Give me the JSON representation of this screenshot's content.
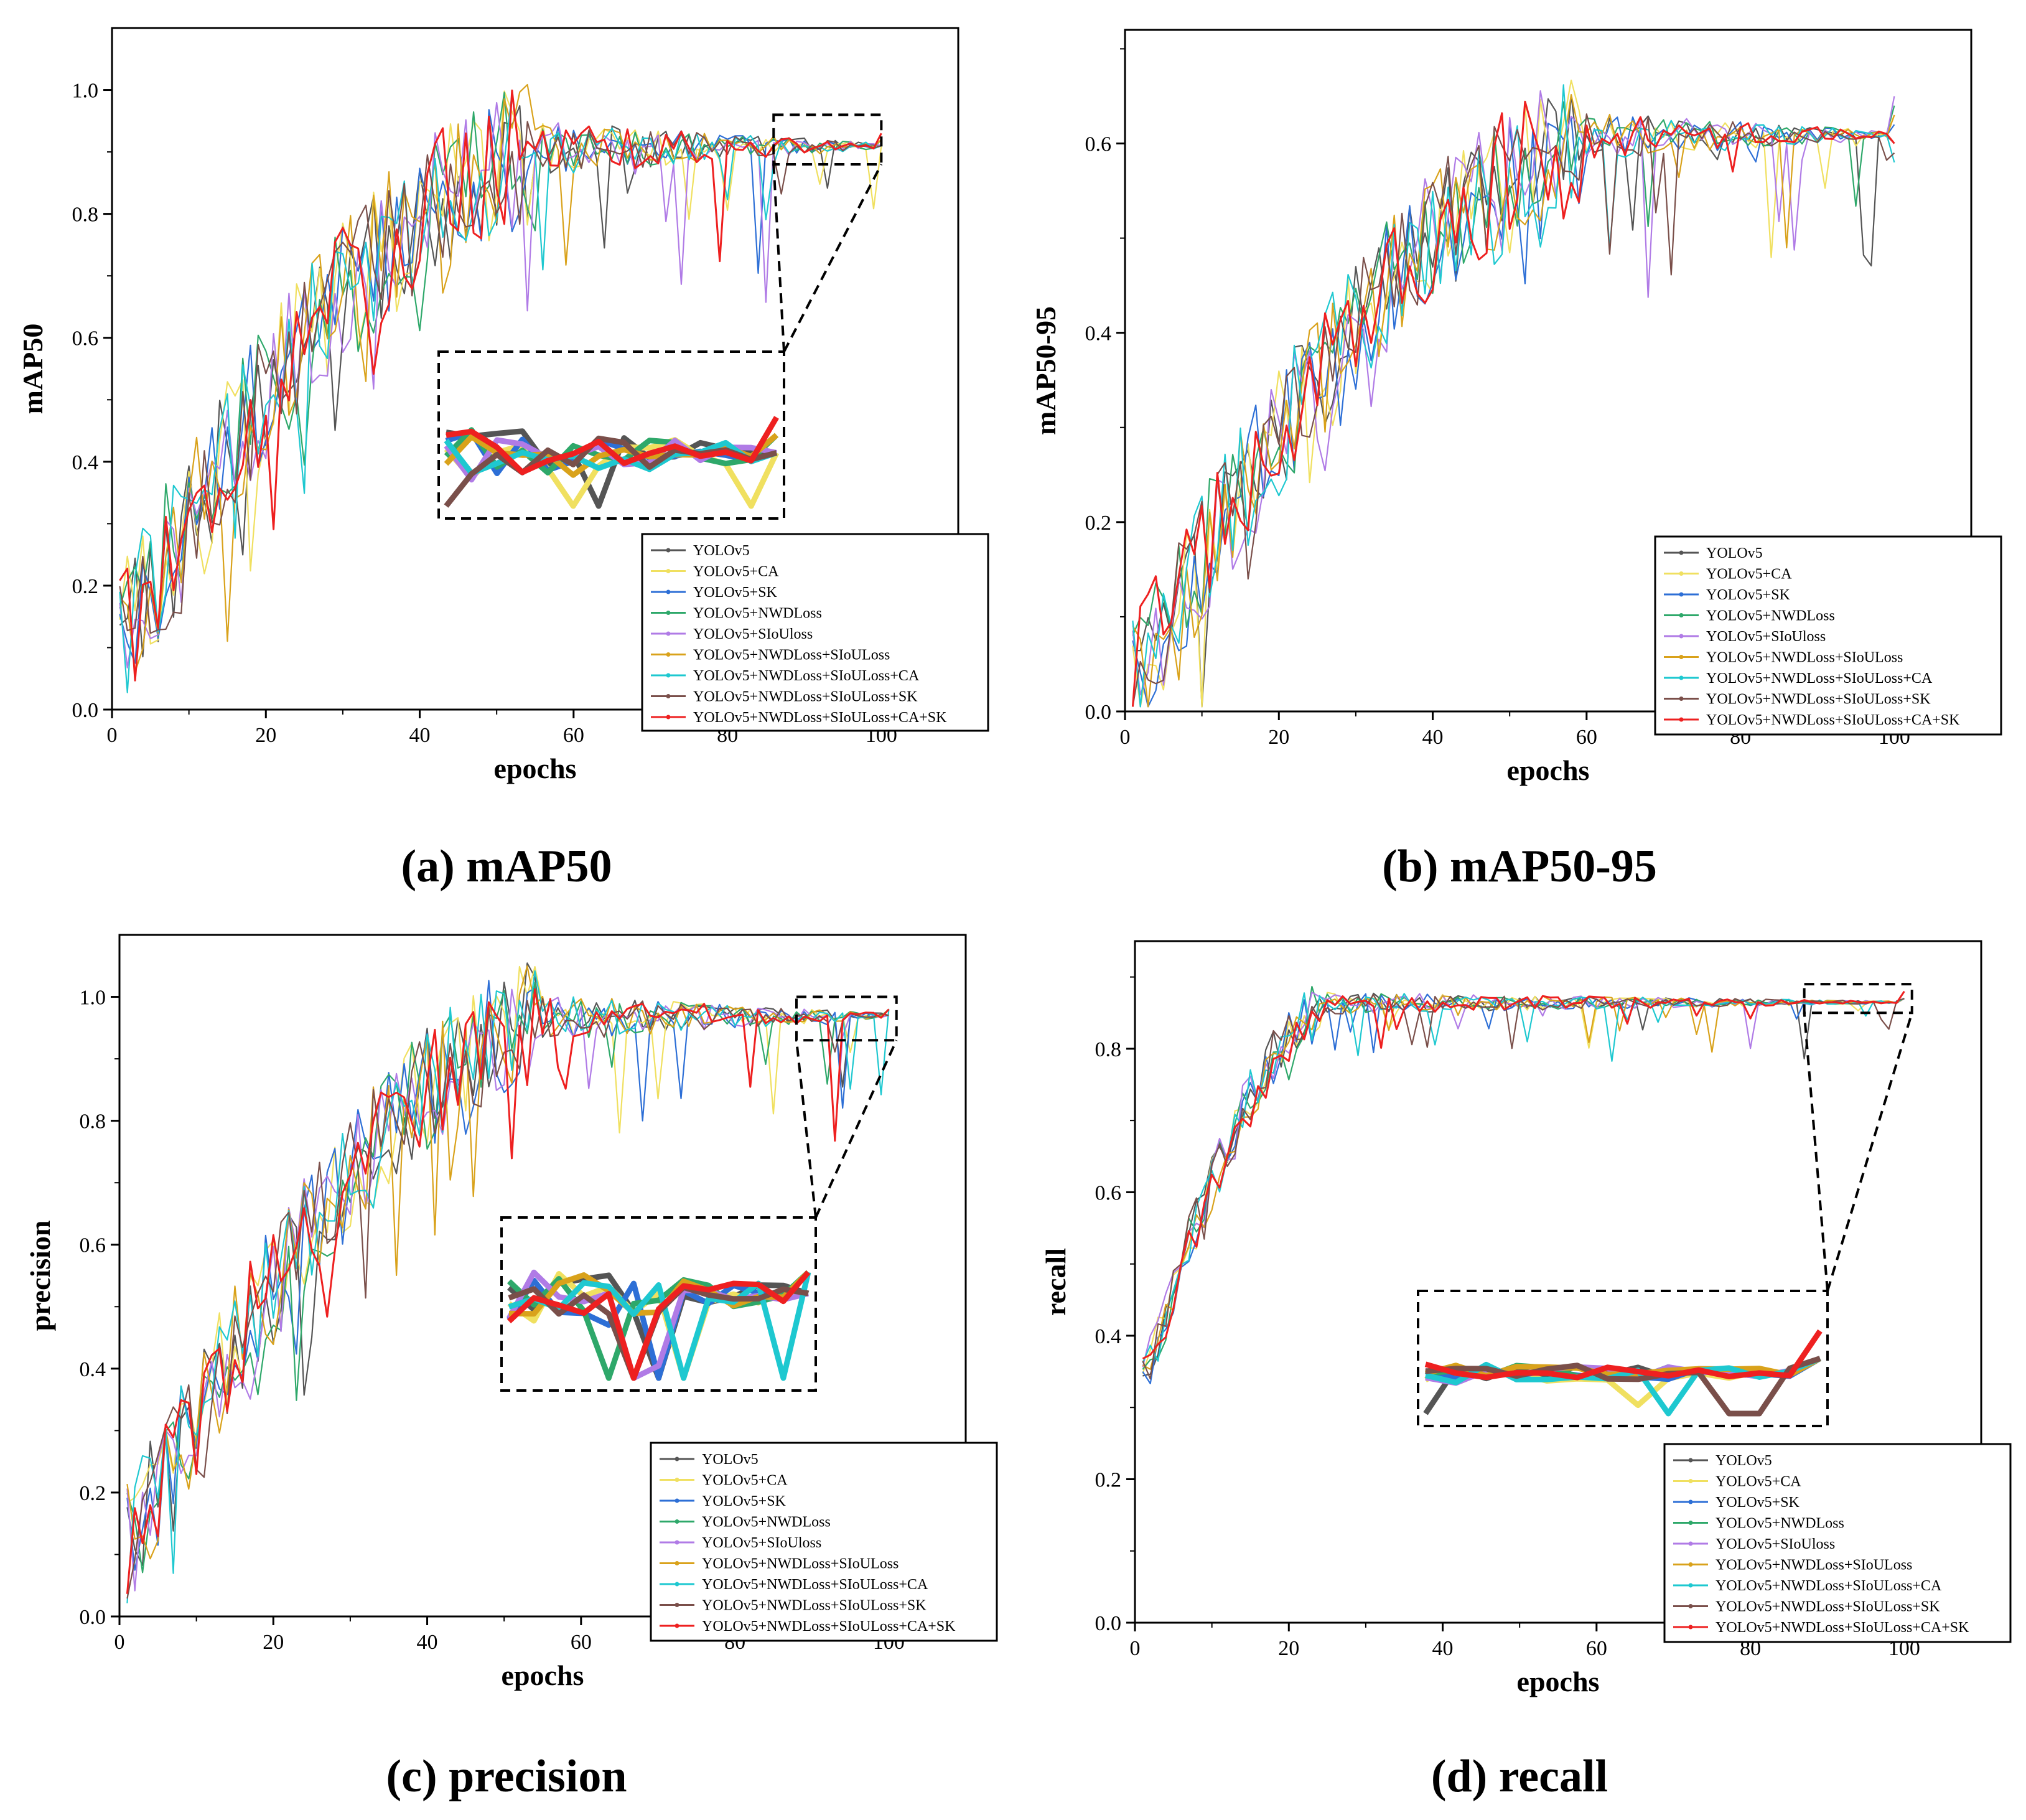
{
  "colors": {
    "YOLOv5": "#555555",
    "YOLOv5+CA": "#f0e060",
    "YOLOv5+SK": "#2d6fd6",
    "YOLOv5+NWDLoss": "#2ea86a",
    "YOLOv5+SIoUloss": "#b07be6",
    "YOLOv5+NWDLoss+SIoULoss": "#d9a21b",
    "YOLOv5+NWDLoss+SIoULoss+CA": "#1ec8d0",
    "YOLOv5+NWDLoss+SIoULoss+SK": "#7a4f4a",
    "YOLOv5+NWDLoss+SIoULoss+CA+SK": "#ee2020"
  },
  "chart_data": [
    {
      "id": "mAP50",
      "type": "line",
      "caption": "(a) mAP50",
      "xlabel": "epochs",
      "ylabel": "mAP50",
      "xlim": [
        0,
        110
      ],
      "ylim": [
        0,
        1.1
      ],
      "xticks": [
        0,
        20,
        40,
        60,
        80,
        100
      ],
      "yticks": [
        0.0,
        0.2,
        0.4,
        0.6,
        0.8,
        1.0
      ],
      "xtick_labels": [
        "0",
        "20",
        "40",
        "60",
        "80",
        "100"
      ],
      "ytick_labels": [
        "0.0",
        "0.2",
        "0.4",
        "0.6",
        "0.8",
        "1.0"
      ],
      "epochs": 100,
      "legend_position": "bottom-right",
      "legend": [
        "YOLOv5",
        "YOLOv5+CA",
        "YOLOv5+SK",
        "YOLOv5+NWDLoss",
        "YOLOv5+SIoUloss",
        "YOLOv5+NWDLoss+SIoULoss",
        "YOLOv5+NWDLoss+SIoULoss+CA",
        "YOLOv5+NWDLoss+SIoULoss+SK",
        "YOLOv5+NWDLoss+SIoULoss+CA+SK"
      ],
      "trend": {
        "start": 0.1,
        "mid": 0.65,
        "plateau": 0.91,
        "noise": 0.12,
        "plateau_epoch": 55
      },
      "zoom_range": {
        "epochs": [
          87,
          100
        ],
        "y": [
          0.88,
          0.96
        ]
      },
      "series": [
        {
          "name": "YOLOv5",
          "final": 0.91
        },
        {
          "name": "YOLOv5+CA",
          "final": 0.91
        },
        {
          "name": "YOLOv5+SK",
          "final": 0.91
        },
        {
          "name": "YOLOv5+NWDLoss",
          "final": 0.92
        },
        {
          "name": "YOLOv5+SIoUloss",
          "final": 0.91
        },
        {
          "name": "YOLOv5+NWDLoss+SIoULoss",
          "final": 0.92
        },
        {
          "name": "YOLOv5+NWDLoss+SIoULoss+CA",
          "final": 0.91
        },
        {
          "name": "YOLOv5+NWDLoss+SIoULoss+SK",
          "final": 0.91
        },
        {
          "name": "YOLOv5+NWDLoss+SIoULoss+CA+SK",
          "final": 0.93
        }
      ]
    },
    {
      "id": "mAP50-95",
      "type": "line",
      "caption": "(b) mAP50-95",
      "xlabel": "epochs",
      "ylabel": "mAP50-95",
      "xlim": [
        0,
        110
      ],
      "ylim": [
        0,
        0.72
      ],
      "xticks": [
        0,
        20,
        40,
        60,
        80,
        100
      ],
      "yticks": [
        0.0,
        0.2,
        0.4,
        0.6
      ],
      "xtick_labels": [
        "0",
        "20",
        "40",
        "60",
        "80",
        "100"
      ],
      "ytick_labels": [
        "0.0",
        "0.2",
        "0.4",
        "0.6"
      ],
      "epochs": 100,
      "legend_position": "bottom-right",
      "legend": [
        "YOLOv5",
        "YOLOv5+CA",
        "YOLOv5+SK",
        "YOLOv5+NWDLoss",
        "YOLOv5+SIoUloss",
        "YOLOv5+NWDLoss+SIoULoss",
        "YOLOv5+NWDLoss+SIoULoss+CA",
        "YOLOv5+NWDLoss+SIoULoss+SK",
        "YOLOv5+NWDLoss+SIoULoss+CA+SK"
      ],
      "trend": {
        "start": 0.02,
        "mid": 0.3,
        "plateau": 0.61,
        "noise": 0.07,
        "plateau_epoch": 60
      },
      "series": [
        {
          "name": "YOLOv5",
          "final": 0.6
        },
        {
          "name": "YOLOv5+CA",
          "final": 0.63
        },
        {
          "name": "YOLOv5+SK",
          "final": 0.62
        },
        {
          "name": "YOLOv5+NWDLoss",
          "final": 0.64
        },
        {
          "name": "YOLOv5+SIoUloss",
          "final": 0.65
        },
        {
          "name": "YOLOv5+NWDLoss+SIoULoss",
          "final": 0.63
        },
        {
          "name": "YOLOv5+NWDLoss+SIoULoss+CA",
          "final": 0.58
        },
        {
          "name": "YOLOv5+NWDLoss+SIoULoss+SK",
          "final": 0.59
        },
        {
          "name": "YOLOv5+NWDLoss+SIoULoss+CA+SK",
          "final": 0.6
        }
      ]
    },
    {
      "id": "precision",
      "type": "line",
      "caption": "(c) precision",
      "xlabel": "epochs",
      "ylabel": "precision",
      "xlim": [
        0,
        110
      ],
      "ylim": [
        0,
        1.1
      ],
      "xticks": [
        0,
        20,
        40,
        60,
        80,
        100
      ],
      "yticks": [
        0.0,
        0.2,
        0.4,
        0.6,
        0.8,
        1.0
      ],
      "xtick_labels": [
        "0",
        "20",
        "40",
        "60",
        "80",
        "100"
      ],
      "ytick_labels": [
        "0.0",
        "0.2",
        "0.4",
        "0.6",
        "0.8",
        "1.0"
      ],
      "epochs": 100,
      "legend_position": "bottom-right",
      "legend": [
        "YOLOv5",
        "YOLOv5+CA",
        "YOLOv5+SK",
        "YOLOv5+NWDLoss",
        "YOLOv5+SIoUloss",
        "YOLOv5+NWDLoss+SIoULoss",
        "YOLOv5+NWDLoss+SIoULoss+CA",
        "YOLOv5+NWDLoss+SIoULoss+SK",
        "YOLOv5+NWDLoss+SIoULoss+CA+SK"
      ],
      "trend": {
        "start": 0.1,
        "mid": 0.62,
        "plateau": 0.97,
        "noise": 0.1,
        "plateau_epoch": 55
      },
      "zoom_range": {
        "epochs": [
          88,
          100
        ],
        "y": [
          0.93,
          1.0
        ]
      },
      "series": [
        {
          "name": "YOLOv5",
          "final": 0.97
        },
        {
          "name": "YOLOv5+CA",
          "final": 0.97
        },
        {
          "name": "YOLOv5+SK",
          "final": 0.98
        },
        {
          "name": "YOLOv5+NWDLoss",
          "final": 0.98
        },
        {
          "name": "YOLOv5+SIoUloss",
          "final": 0.97
        },
        {
          "name": "YOLOv5+NWDLoss+SIoULoss",
          "final": 0.98
        },
        {
          "name": "YOLOv5+NWDLoss+SIoULoss+CA",
          "final": 0.98
        },
        {
          "name": "YOLOv5+NWDLoss+SIoULoss+SK",
          "final": 0.97
        },
        {
          "name": "YOLOv5+NWDLoss+SIoULoss+CA+SK",
          "final": 0.98
        }
      ]
    },
    {
      "id": "recall",
      "type": "line",
      "caption": "(d) recall",
      "xlabel": "epochs",
      "ylabel": "recall",
      "xlim": [
        0,
        110
      ],
      "ylim": [
        0,
        0.95
      ],
      "xticks": [
        0,
        20,
        40,
        60,
        80,
        100
      ],
      "yticks": [
        0.0,
        0.2,
        0.4,
        0.6,
        0.8
      ],
      "xtick_labels": [
        "0",
        "20",
        "40",
        "60",
        "80",
        "100"
      ],
      "ytick_labels": [
        "0.0",
        "0.2",
        "0.4",
        "0.6",
        "0.8"
      ],
      "epochs": 100,
      "legend_position": "bottom-right",
      "legend": [
        "YOLOv5",
        "YOLOv5+CA",
        "YOLOv5+SK",
        "YOLOv5+NWDLoss",
        "YOLOv5+SIoUloss",
        "YOLOv5+NWDLoss+SIoULoss",
        "YOLOv5+NWDLoss+SIoULoss+CA",
        "YOLOv5+NWDLoss+SIoULoss+SK",
        "YOLOv5+NWDLoss+SIoULoss+CA+SK"
      ],
      "trend": {
        "start": 0.3,
        "mid": 0.8,
        "plateau": 0.865,
        "noise": 0.04,
        "plateau_epoch": 25
      },
      "zoom_range": {
        "epochs": [
          87,
          100
        ],
        "y": [
          0.85,
          0.89
        ]
      },
      "series": [
        {
          "name": "YOLOv5",
          "final": 0.87
        },
        {
          "name": "YOLOv5+CA",
          "final": 0.87
        },
        {
          "name": "YOLOv5+SK",
          "final": 0.87
        },
        {
          "name": "YOLOv5+NWDLoss",
          "final": 0.87
        },
        {
          "name": "YOLOv5+SIoUloss",
          "final": 0.87
        },
        {
          "name": "YOLOv5+NWDLoss+SIoULoss",
          "final": 0.87
        },
        {
          "name": "YOLOv5+NWDLoss+SIoULoss+CA",
          "final": 0.87
        },
        {
          "name": "YOLOv5+NWDLoss+SIoULoss+SK",
          "final": 0.87
        },
        {
          "name": "YOLOv5+NWDLoss+SIoULoss+CA+SK",
          "final": 0.88
        }
      ]
    }
  ]
}
